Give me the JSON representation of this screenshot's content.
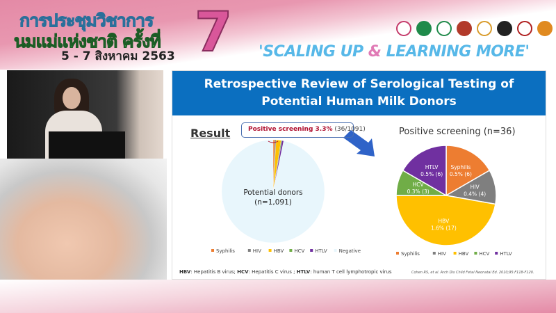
{
  "banner": {
    "title_line1": "การประชุมวิชาการ",
    "title_line2": "นมแม่แห่งชาติ ครั้งที่",
    "number": "7",
    "date": "5 - 7 สิงหาคม 2563",
    "slogan_part1": "'SCALING UP ",
    "slogan_amp": "&",
    "slogan_part2": " LEARNING MORE'",
    "logos": [
      "logo-1",
      "logo-2",
      "logo-3",
      "logo-4",
      "logo-5",
      "logo-6",
      "logo-7",
      "sss-logo"
    ]
  },
  "slide": {
    "title_line1": "Retrospective Review of Serological Testing of",
    "title_line2": "Potential Human Milk Donors",
    "result_heading": "Result",
    "callout_text": "Positive screening 3.3%",
    "callout_fraction": " (36/1091)",
    "footnote": [
      {
        "abbr": "HBV",
        "text": ": Hepatitis B virus; "
      },
      {
        "abbr": "HCV",
        "text": ": Hepatitis C virus ; "
      },
      {
        "abbr": "HTLV",
        "text": ": human T cell lymphotropic virus"
      }
    ],
    "citation": "Cohen RS, et al. Arch Dis Child Fetal Neonatal Ed. 2010;95:F118-F120."
  },
  "colors": {
    "Syphilis": "#ed7d31",
    "HIV": "#7f7f7f",
    "HBV": "#ffc000",
    "HCV": "#70ad47",
    "HTLV": "#7030a0",
    "Negative": "#e8f6fc",
    "title_bar": "#0b6fc0"
  },
  "chart_data": [
    {
      "type": "pie",
      "center_label_line1": "Potential donors",
      "center_label_line2": "(n=1,091)",
      "categories": [
        "Syphilis",
        "HIV",
        "HBV",
        "HCV",
        "HTLV",
        "Negative"
      ],
      "values": [
        6,
        4,
        17,
        3,
        6,
        1055
      ],
      "legend": "bottom"
    },
    {
      "type": "pie",
      "title": "Positive screening (n=36)",
      "categories": [
        "Syphilis",
        "HIV",
        "HBV",
        "HCV",
        "HTLV"
      ],
      "values": [
        6,
        4,
        17,
        3,
        6
      ],
      "data_labels": [
        "0.5% (6)",
        "0.4% (4)",
        "1.6% (17)",
        "0.3% (3)",
        "0.5% (6)"
      ],
      "legend": "bottom"
    }
  ]
}
